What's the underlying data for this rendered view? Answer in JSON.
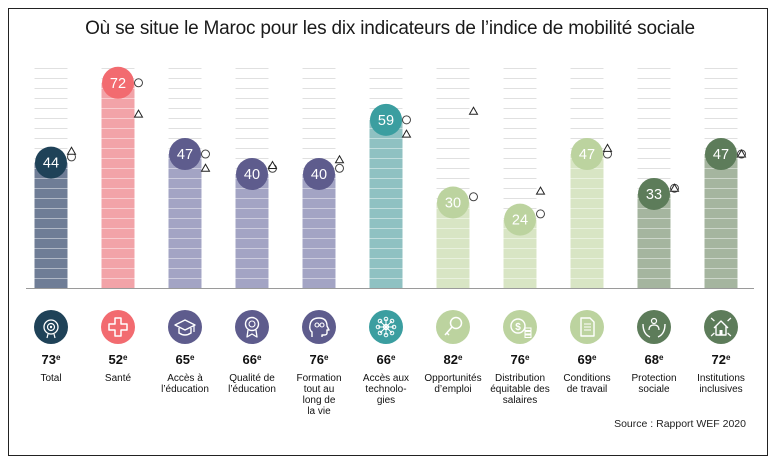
{
  "title": "Où se situe le Maroc pour les dix indicateurs de l’indice de mobilité sociale",
  "source": "Source : Rapport WEF 2020",
  "chart_data": {
    "type": "bar",
    "ylim": [
      0,
      80
    ],
    "categories": [
      {
        "label": [
          "Total"
        ],
        "value": 44,
        "rank": "73",
        "color": "#6f7d96",
        "circle": "#1f4258",
        "icon": "target-badge-icon",
        "marker_circle": 46,
        "marker_triangle": 48
      },
      {
        "label": [
          "Santé"
        ],
        "value": 72,
        "rank": "52",
        "color": "#f2a3a8",
        "circle": "#f26b70",
        "icon": "health-cross-icon",
        "marker_circle": 72,
        "marker_triangle": 61
      },
      {
        "label": [
          "Accès à",
          "l’éducation"
        ],
        "value": 47,
        "rank": "65",
        "color": "#a3a4c4",
        "circle": "#5e5c8d",
        "icon": "graduation-cap-icon",
        "marker_circle": 47,
        "marker_triangle": 42
      },
      {
        "label": [
          "Qualité de",
          "l’éducation"
        ],
        "value": 40,
        "rank": "66",
        "color": "#a3a4c4",
        "circle": "#5e5c8d",
        "icon": "award-ribbon-icon",
        "marker_circle": 42,
        "marker_triangle": 43
      },
      {
        "label": [
          "Formation",
          "tout au",
          "long de",
          "la vie"
        ],
        "value": 40,
        "rank": "76",
        "color": "#a3a4c4",
        "circle": "#5e5c8d",
        "icon": "head-learning-icon",
        "marker_circle": 42,
        "marker_triangle": 45
      },
      {
        "label": [
          "Accès aux",
          "technolo-",
          "gies"
        ],
        "value": 59,
        "rank": "66",
        "color": "#8fc1c2",
        "circle": "#3b9ea0",
        "icon": "network-nodes-icon",
        "marker_circle": 59,
        "marker_triangle": 54
      },
      {
        "label": [
          "Opportunités",
          "d’emploi"
        ],
        "value": 30,
        "rank": "82",
        "color": "#d8e5c4",
        "circle": "#bcd39f",
        "icon": "key-search-icon",
        "marker_circle": 32,
        "marker_triangle": 62
      },
      {
        "label": [
          "Distribution",
          "équitable des",
          "salaires"
        ],
        "value": 24,
        "rank": "76",
        "color": "#d8e5c4",
        "circle": "#bcd39f",
        "icon": "coins-icon",
        "marker_circle": 26,
        "marker_triangle": 34
      },
      {
        "label": [
          "Conditions",
          "de travail"
        ],
        "value": 47,
        "rank": "69",
        "color": "#d8e5c4",
        "circle": "#bcd39f",
        "icon": "document-icon",
        "marker_circle": 47,
        "marker_triangle": 49
      },
      {
        "label": [
          "Protection",
          "sociale"
        ],
        "value": 33,
        "rank": "68",
        "color": "#a5b59f",
        "circle": "#5d7c5a",
        "icon": "protecting-hands-icon",
        "marker_circle": 35,
        "marker_triangle": 35
      },
      {
        "label": [
          "Institutions",
          "inclusives"
        ],
        "value": 47,
        "rank": "72",
        "color": "#a5b59f",
        "circle": "#5d7c5a",
        "icon": "inclusive-house-icon",
        "marker_circle": 47,
        "marker_triangle": 47
      }
    ],
    "rank_suffix": "e"
  }
}
